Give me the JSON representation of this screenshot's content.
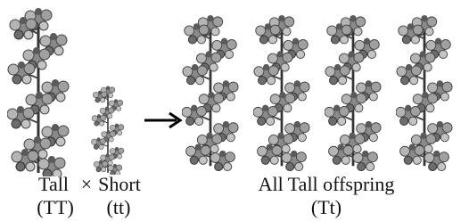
{
  "parents": [
    {
      "label": "Tall",
      "genotype": "(TT)"
    },
    {
      "label": "Short",
      "genotype": "(tt)"
    }
  ],
  "cross_symbol": "×",
  "offspring": {
    "label": "All Tall offspring",
    "genotype": "(Tt)"
  }
}
